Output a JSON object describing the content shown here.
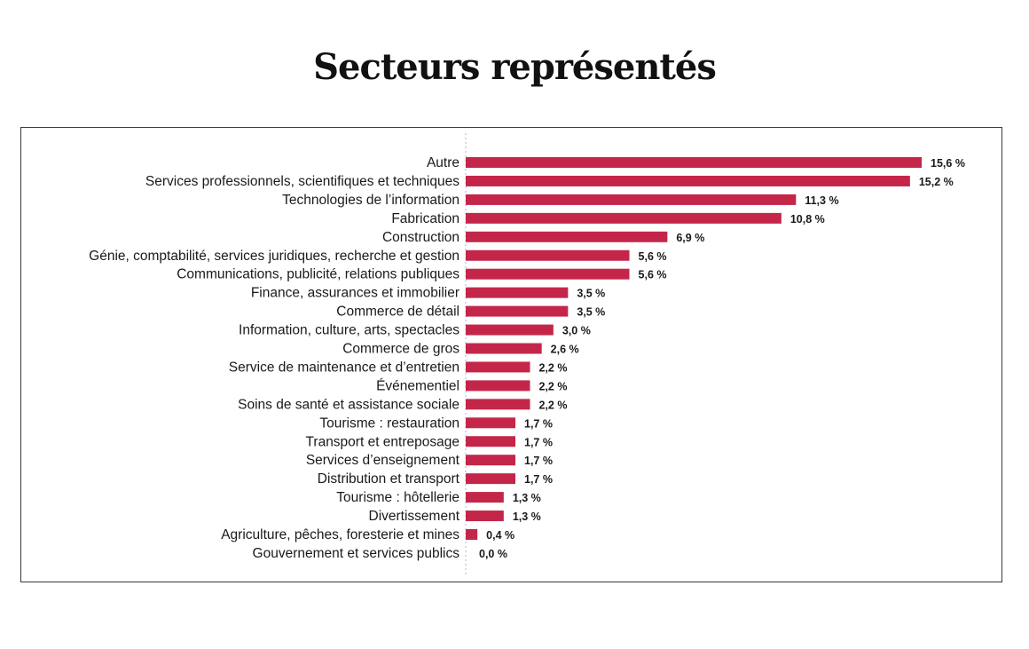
{
  "chart_data": {
    "type": "bar",
    "orientation": "horizontal",
    "title": "Secteurs représentés",
    "bar_color": "#c4264a",
    "categories": [
      "Autre",
      "Services professionnels, scientifiques et techniques",
      "Technologies de l’information",
      "Fabrication",
      "Construction",
      "Génie, comptabilité, services juridiques, recherche et gestion",
      "Communications, publicité, relations publiques",
      "Finance, assurances et immobilier",
      "Commerce de détail",
      "Information, culture, arts, spectacles",
      "Commerce de gros",
      "Service de maintenance et d’entretien",
      "Événementiel",
      "Soins de santé et assistance sociale",
      "Tourisme : restauration",
      "Transport et entreposage",
      "Services d’enseignement",
      "Distribution et transport",
      "Tourisme : hôtellerie",
      "Divertissement",
      "Agriculture, pêches, foresterie et mines",
      "Gouvernement et services publics"
    ],
    "values": [
      15.6,
      15.2,
      11.3,
      10.8,
      6.9,
      5.6,
      5.6,
      3.5,
      3.5,
      3.0,
      2.6,
      2.2,
      2.2,
      2.2,
      1.7,
      1.7,
      1.7,
      1.7,
      1.3,
      1.3,
      0.4,
      0.0
    ],
    "value_labels": [
      "15,6 %",
      "15,2 %",
      "11,3 %",
      "10,8 %",
      "6,9 %",
      "5,6 %",
      "5,6 %",
      "3,5 %",
      "3,5 %",
      "3,0 %",
      "2,6 %",
      "2,2 %",
      "2,2 %",
      "2,2 %",
      "1,7 %",
      "1,7 %",
      "1,7 %",
      "1,7 %",
      "1,3 %",
      "1,3 %",
      "0,4 %",
      "0,0 %"
    ],
    "xlabel": "",
    "ylabel": "",
    "grid": false,
    "legend": "none"
  }
}
